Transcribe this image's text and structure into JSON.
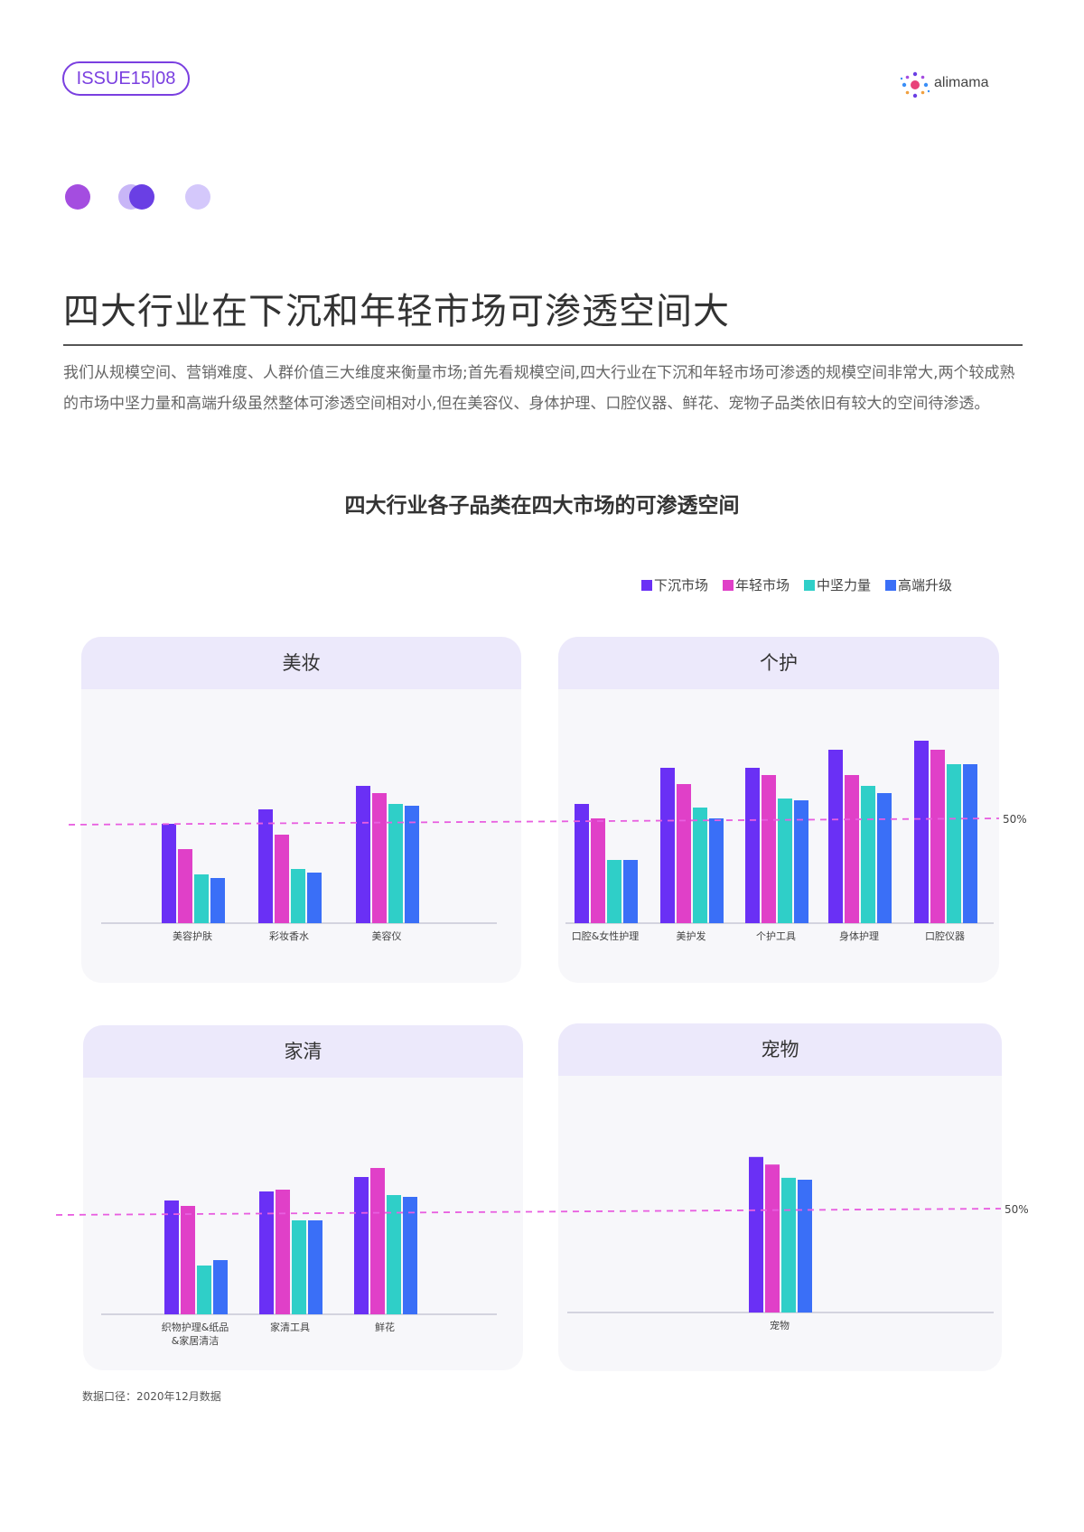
{
  "header": {
    "issue": "ISSUE15|08",
    "logo_text": "alimama",
    "dot_colors": [
      "#a44de0",
      "#c8b6f7",
      "#6a3fe4",
      "#d4c8fb"
    ]
  },
  "page_title": "四大行业在下沉和年轻市场可渗透空间大",
  "intro": "我们从规模空间、营销难度、人群价值三大维度来衡量市场;首先看规模空间,四大行业在下沉和年轻市场可渗透的规模空间非常大,两个较成熟的市场中坚力量和高端升级虽然整体可渗透空间相对小,但在美容仪、身体护理、口腔仪器、鲜花、宠物子品类依旧有较大的空间待渗透。",
  "chart_title": "四大行业各子品类在四大市场的可渗透空间",
  "legend": [
    {
      "label": "下沉市场",
      "color": "#6a30f5"
    },
    {
      "label": "年轻市场",
      "color": "#e040c8"
    },
    {
      "label": "中坚力量",
      "color": "#2fcfc8"
    },
    {
      "label": "高端升级",
      "color": "#3a6ff7"
    }
  ],
  "reference_line": {
    "label": "50%",
    "value": 50,
    "color": "#e85ee0"
  },
  "chart_data": [
    {
      "type": "bar",
      "title": "美妆",
      "categories": [
        "美容护肤",
        "彩妆香水",
        "美容仪"
      ],
      "ylim": [
        0,
        100
      ],
      "series": [
        {
          "name": "下沉市场",
          "values": [
            55,
            63,
            76
          ]
        },
        {
          "name": "年轻市场",
          "values": [
            41,
            49,
            72
          ]
        },
        {
          "name": "中坚力量",
          "values": [
            27,
            30,
            66
          ]
        },
        {
          "name": "高端升级",
          "values": [
            25,
            28,
            65
          ]
        }
      ]
    },
    {
      "type": "bar",
      "title": "个护",
      "categories": [
        "口腔&女性护理",
        "美护发",
        "个护工具",
        "身体护理",
        "口腔仪器"
      ],
      "ylim": [
        0,
        100
      ],
      "series": [
        {
          "name": "下沉市场",
          "values": [
            66,
            86,
            86,
            96,
            101
          ]
        },
        {
          "name": "年轻市场",
          "values": [
            58,
            77,
            82,
            82,
            96
          ]
        },
        {
          "name": "中坚力量",
          "values": [
            35,
            64,
            69,
            76,
            88
          ]
        },
        {
          "name": "高端升级",
          "values": [
            35,
            58,
            68,
            72,
            88
          ]
        }
      ]
    },
    {
      "type": "bar",
      "title": "家清",
      "categories": [
        "织物护理&纸品&家居清洁",
        "家清工具",
        "鲜花"
      ],
      "ylim": [
        0,
        100
      ],
      "series": [
        {
          "name": "下沉市场",
          "values": [
            63,
            68,
            76
          ]
        },
        {
          "name": "年轻市场",
          "values": [
            60,
            69,
            81
          ]
        },
        {
          "name": "中坚力量",
          "values": [
            27,
            52,
            66
          ]
        },
        {
          "name": "高端升级",
          "values": [
            30,
            52,
            65
          ]
        }
      ]
    },
    {
      "type": "bar",
      "title": "宠物",
      "categories": [
        "宠物"
      ],
      "ylim": [
        0,
        100
      ],
      "series": [
        {
          "name": "下沉市场",
          "values": [
            82
          ]
        },
        {
          "name": "年轻市场",
          "values": [
            78
          ]
        },
        {
          "name": "中坚力量",
          "values": [
            71
          ]
        },
        {
          "name": "高端升级",
          "values": [
            70
          ]
        }
      ]
    }
  ],
  "footnote": "数据口径：2020年12月数据"
}
